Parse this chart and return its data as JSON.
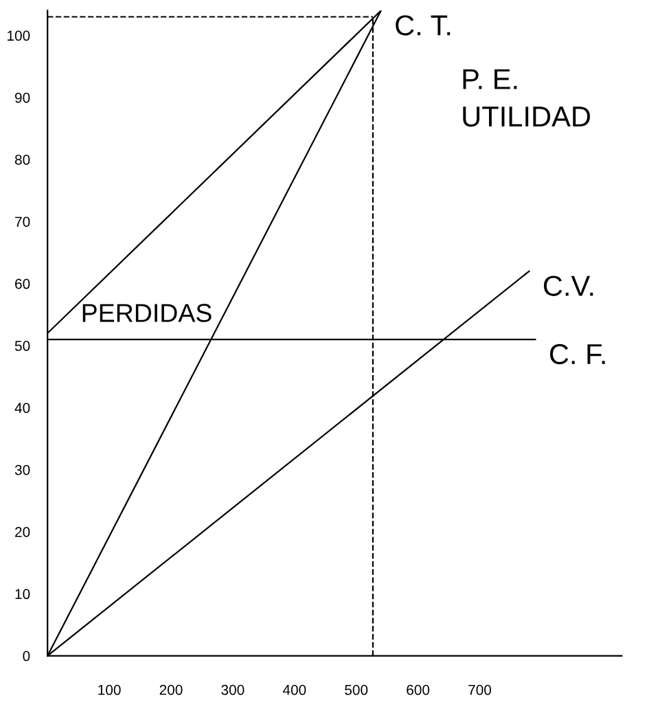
{
  "chart_data": {
    "type": "line",
    "series": [
      {
        "name": "C. T.",
        "color": "#000000",
        "x": [
          0,
          540
        ],
        "values": [
          52,
          104
        ]
      },
      {
        "color": "#000000",
        "x": [
          0,
          540
        ],
        "values": [
          0,
          104
        ]
      },
      {
        "name": "C. F.",
        "color": "#000000",
        "x": [
          0,
          790
        ],
        "values": [
          51,
          51
        ]
      },
      {
        "name": "C.V.",
        "color": "#000000",
        "x": [
          0,
          780
        ],
        "values": [
          0,
          62
        ]
      },
      {
        "color": "#000000",
        "x": [
          0,
          527
        ],
        "values": [
          103,
          103
        ],
        "line_style": "dashed"
      },
      {
        "color": "#000000",
        "x": [
          527,
          527
        ],
        "values": [
          0,
          103
        ],
        "line_style": "dashed"
      }
    ],
    "annotations": [
      "P. E.",
      "UTILIDAD",
      "PERDIDAS"
    ],
    "xlim": [
      0,
      930
    ],
    "ylim": [
      0,
      104
    ],
    "xticks": [
      100,
      200,
      300,
      400,
      500,
      600,
      700
    ],
    "yticks": [
      0,
      10,
      20,
      30,
      40,
      50,
      60,
      70,
      80,
      90,
      100
    ],
    "grid": false,
    "legend": false,
    "line_style": "solid"
  }
}
